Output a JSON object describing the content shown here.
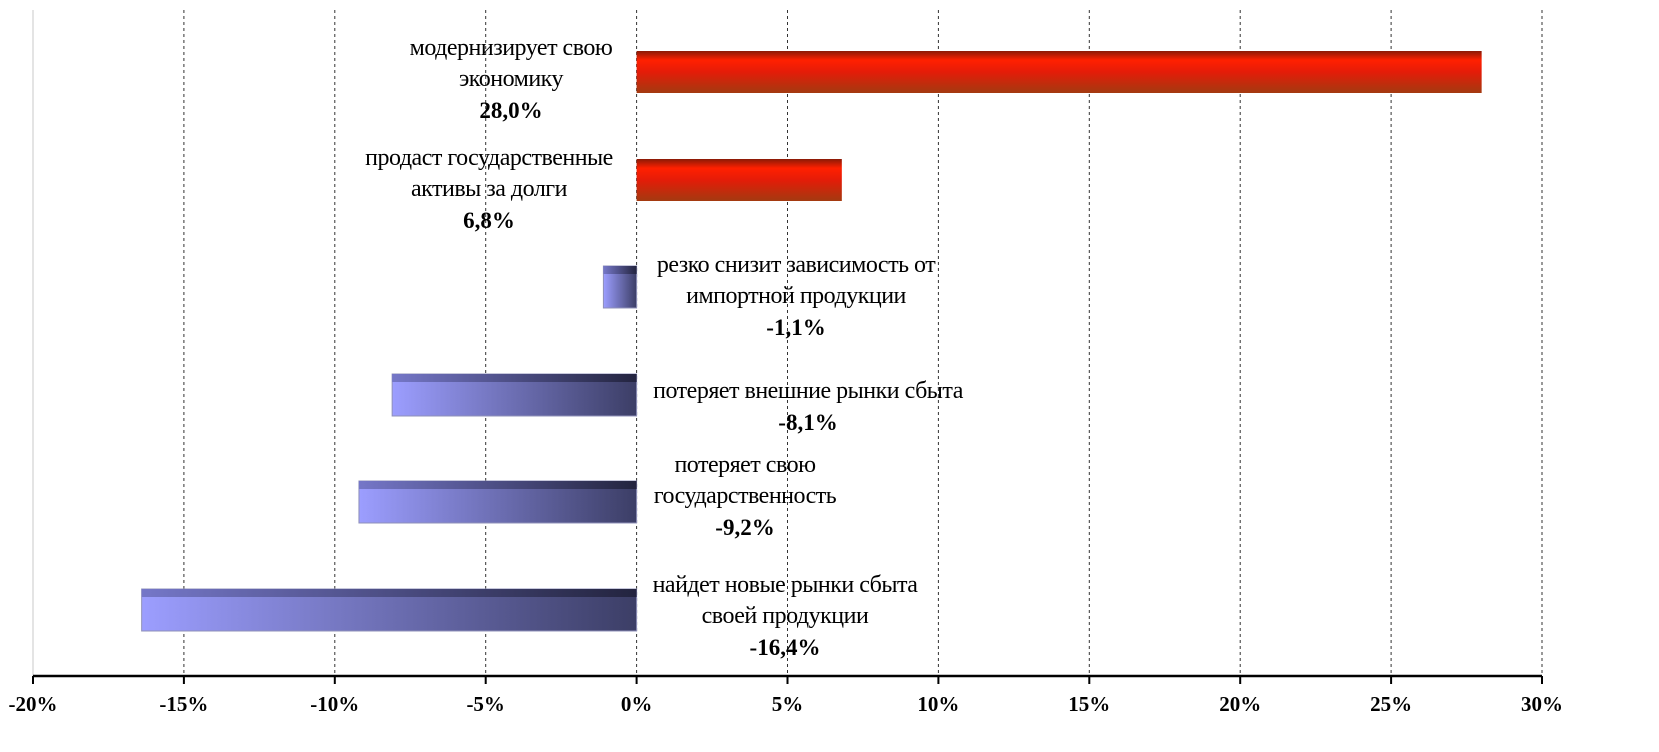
{
  "colors": {
    "positive_bar": "#e8230a",
    "positive_bar_dark": "#9a1f08",
    "negative_bar_light": "#9a9cff",
    "negative_bar_dark": "#3b3d66",
    "axis": "#000000",
    "grid": "#333333"
  },
  "chart_data": {
    "type": "bar",
    "orientation": "horizontal",
    "xlim": [
      -20,
      30
    ],
    "x_ticks": [
      -20,
      -15,
      -10,
      -5,
      0,
      5,
      10,
      15,
      20,
      25,
      30
    ],
    "x_tick_labels": [
      "-20%",
      "-15%",
      "-10%",
      "-5%",
      "0%",
      "5%",
      "10%",
      "15%",
      "20%",
      "25%",
      "30%"
    ],
    "grid": "vertical dashed",
    "categories": [
      [
        "модернизирует свою",
        "экономику"
      ],
      [
        "продаст государственные",
        "активы за долги"
      ],
      [
        "резко снизит зависимость от",
        "импортной продукции"
      ],
      [
        "потеряет внешние рынки сбыта"
      ],
      [
        "потеряет свою",
        "государственность"
      ],
      [
        "найдет новые рынки сбыта",
        "своей продукции"
      ]
    ],
    "values": [
      28.0,
      6.8,
      -1.1,
      -8.1,
      -9.2,
      -16.4
    ],
    "value_labels": [
      "28,0%",
      "6,8%",
      "-1,1%",
      "-8,1%",
      "-9,2%",
      "-16,4%"
    ]
  }
}
